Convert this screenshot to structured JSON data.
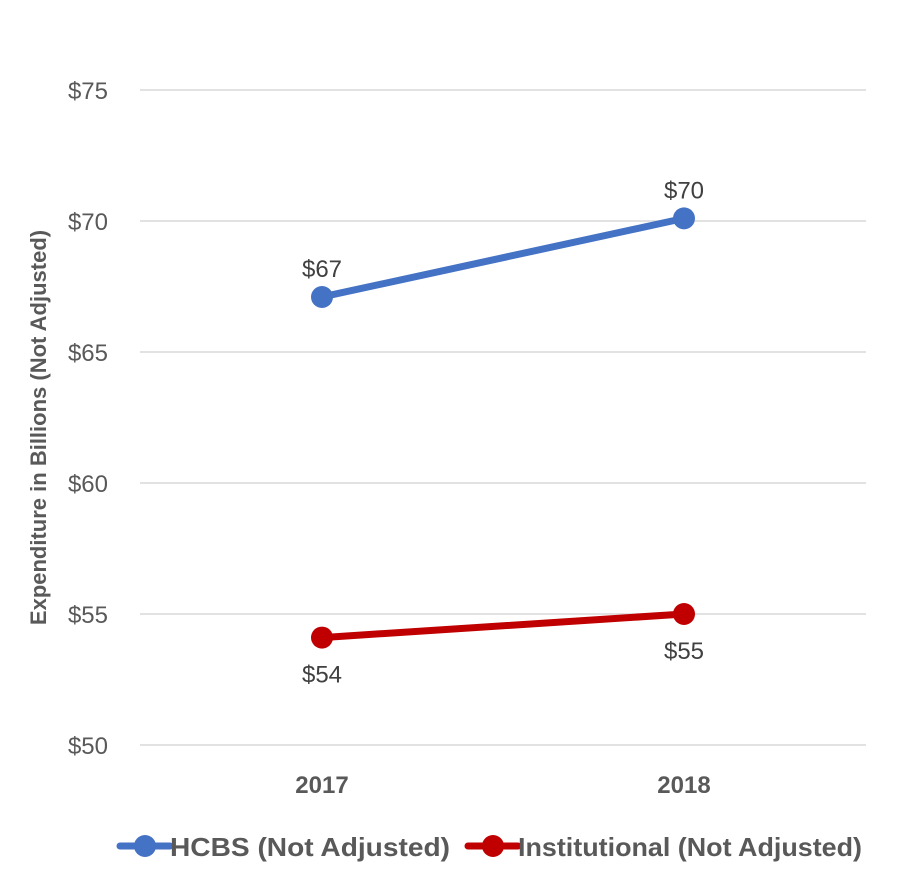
{
  "chart_data": {
    "type": "line",
    "title": "",
    "xlabel": "",
    "ylabel": "Expenditure in Billions (Not Adjusted)",
    "categories": [
      "2017",
      "2018"
    ],
    "ylim": [
      50,
      75
    ],
    "yticks": [
      50,
      55,
      60,
      65,
      70,
      75
    ],
    "ytick_labels": [
      "$50",
      "$55",
      "$60",
      "$65",
      "$70",
      "$75"
    ],
    "grid": true,
    "legend_position": "bottom",
    "series": [
      {
        "name": "HCBS (Not Adjusted)",
        "color": "#4472C4",
        "values": [
          67.1,
          70.1
        ],
        "data_labels": [
          "$67",
          "$70"
        ],
        "label_position": "above"
      },
      {
        "name": "Institutional (Not Adjusted)",
        "color": "#C00000",
        "values": [
          54.1,
          55.0
        ],
        "data_labels": [
          "$54",
          "$55"
        ],
        "label_position": "below"
      }
    ]
  }
}
